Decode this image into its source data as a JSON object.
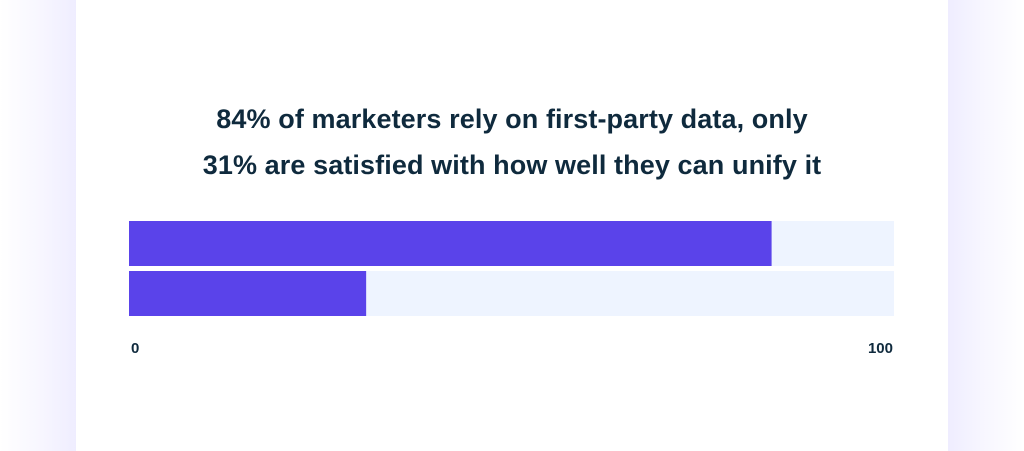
{
  "chart_data": {
    "type": "bar",
    "orientation": "horizontal",
    "title": [
      "84% of marketers rely on first-party data, only",
      "31% are satisfied with how well they can unify it"
    ],
    "categories": [
      "",
      ""
    ],
    "values": [
      84,
      31
    ],
    "xlim": [
      0,
      100
    ],
    "tick_labels": [
      "0",
      "100"
    ],
    "xlabel": "",
    "ylabel": "",
    "grid": false,
    "legend": "none",
    "colors": {
      "bar": "#5a43ea",
      "track": "#eef4ff",
      "text": "#0f2a3d"
    }
  }
}
